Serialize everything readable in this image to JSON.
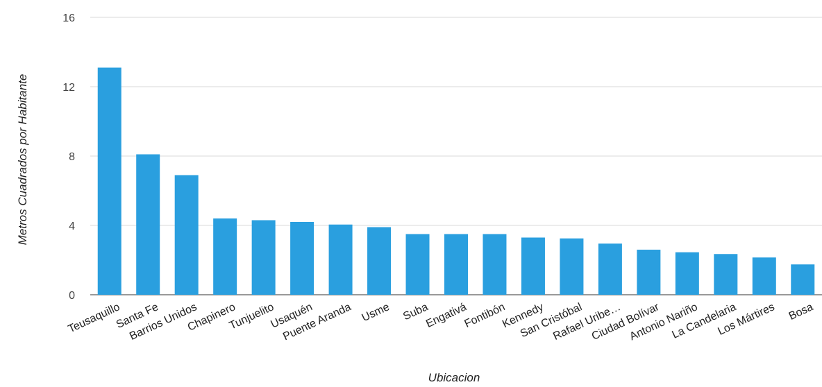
{
  "chart_data": {
    "type": "bar",
    "title": "",
    "xlabel": "Ubicacion",
    "ylabel": "Metros Cuadrados por Habitante",
    "ylim": [
      0,
      16
    ],
    "yticks": [
      0,
      4,
      8,
      12,
      16
    ],
    "grid": true,
    "legend": "none",
    "bar_color": "#2a9fdf",
    "categories": [
      "Teusaquillo",
      "Santa Fe",
      "Barrios Unidos",
      "Chapinero",
      "Tunjuelito",
      "Usaquén",
      "Puente Aranda",
      "Usme",
      "Suba",
      "Engativá",
      "Fontibón",
      "Kennedy",
      "San Cristóbal",
      "Rafael Uribe…",
      "Ciudad Bolívar",
      "Antonio Nariño",
      "La Candelaria",
      "Los Mártires",
      "Bosa"
    ],
    "values": [
      13.1,
      8.1,
      6.9,
      4.4,
      4.3,
      4.2,
      4.05,
      3.9,
      3.5,
      3.5,
      3.5,
      3.3,
      3.25,
      2.95,
      2.6,
      2.45,
      2.35,
      2.15,
      1.75
    ]
  }
}
